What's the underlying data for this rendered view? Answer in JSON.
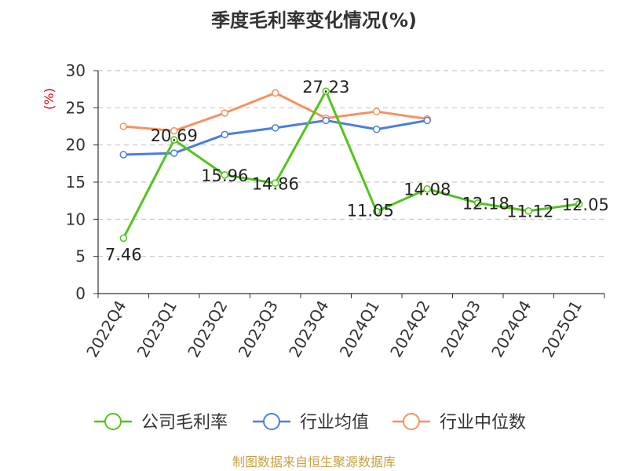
{
  "title": "季度毛利率变化情况(%)",
  "source": "制图数据来自恒生聚源数据库",
  "colors": {
    "company": "#52c41a",
    "industry_avg": "#4a7fe0",
    "industry_median": "#f5925e",
    "unit_label": "#d40000",
    "source": "#c8a040"
  },
  "chart_data": {
    "type": "line",
    "title": "季度毛利率变化情况(%)",
    "ylabel": "(%)",
    "ylim": [
      0,
      30
    ],
    "yticks": [
      "0",
      "5",
      "10",
      "15",
      "20",
      "25",
      "30"
    ],
    "grid": true,
    "legend_position": "bottom",
    "categories": [
      "2022Q4",
      "2023Q1",
      "2023Q2",
      "2023Q3",
      "2023Q4",
      "2024Q1",
      "2024Q2",
      "2024Q3",
      "2024Q4",
      "2025Q1"
    ],
    "series": [
      {
        "name": "公司毛利率",
        "color": "#52c41a",
        "values": [
          7.46,
          20.69,
          15.96,
          14.86,
          27.23,
          11.05,
          14.08,
          12.18,
          11.12,
          12.05
        ],
        "labels": [
          "7.46",
          "20.69",
          "15.96",
          "14.86",
          "27.23",
          "11.05",
          "14.08",
          "12.18",
          "11.12",
          "12.05"
        ]
      },
      {
        "name": "行业均值",
        "color": "#4a7fe0",
        "values": [
          18.7,
          18.9,
          21.4,
          22.3,
          23.3,
          22.1,
          23.3,
          null,
          null,
          null
        ]
      },
      {
        "name": "行业中位数",
        "color": "#f5925e",
        "values": [
          22.5,
          21.9,
          24.3,
          27.0,
          23.6,
          24.5,
          23.5,
          null,
          null,
          null
        ]
      }
    ]
  }
}
